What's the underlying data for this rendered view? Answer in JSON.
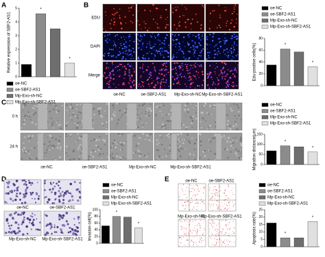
{
  "panel_letters": [
    "A",
    "B",
    "C",
    "D",
    "E"
  ],
  "b_rows": [
    "EDU",
    "DAPI",
    "Merge"
  ],
  "b_columns": [
    "oe-NC",
    "oe-SBF2-AS1",
    "Mp-Exo-sh-NC",
    "Mp-Exo-sh-SBF2-AS1"
  ],
  "c_rows": [
    "0 h",
    "24 h"
  ],
  "c_columns": [
    "oe-NC",
    "oe-SBF2-AS1",
    "Mp-Exo-sh-NC",
    "Mp-Exo-sh-SBF2-AS1"
  ],
  "d_labels": [
    "oe-NC",
    "oe-SBF2-AS1",
    "Mp-Exo-sh-NC",
    "Mp-Exo-sh-SBF2-AS1"
  ],
  "e_labels": [
    "oe-NC",
    "oe-SBF2-AS1",
    "Mp-Exo-sh-NC",
    "Mp-Exo-sh-SBF2-AS1"
  ],
  "chart_data": [
    {
      "type": "bar",
      "ylabel": "Relative expression of SBF2-AS1",
      "categories": [
        "oe-NC",
        "oe-SBF2-AS1",
        "Mp-Exo-sh-NC",
        "Mp-Exo-sh-SBF2-AS1"
      ],
      "values": [
        0.9,
        4.6,
        3.5,
        1.0
      ],
      "colors": [
        "#000000",
        "#8c8c8c",
        "#6e6e6e",
        "#e0e0e0"
      ],
      "ylim": [
        0,
        5
      ],
      "yticks": [
        0,
        1,
        2,
        3,
        4,
        5
      ],
      "annotations": [
        {
          "category": "oe-SBF2-AS1",
          "text": "*"
        },
        {
          "category": "Mp-Exo-sh-SBF2-AS1",
          "text": "*"
        }
      ]
    },
    {
      "type": "bar",
      "ylabel": "Edu-positive cells(%)",
      "categories": [
        "oe-NC",
        "oe-SBF2-AS1",
        "Mp-Exo-sh-NC",
        "Mp-Exo-sh-SBF2-AS1"
      ],
      "values": [
        35,
        62,
        57,
        32
      ],
      "colors": [
        "#000000",
        "#8c8c8c",
        "#6e6e6e",
        "#e0e0e0"
      ],
      "ylim": [
        0,
        80
      ],
      "yticks": [
        0,
        20,
        40,
        60,
        80
      ],
      "annotations": [
        {
          "category": "oe-SBF2-AS1",
          "text": "*"
        },
        {
          "category": "Mp-Exo-sh-SBF2-AS1",
          "text": "*"
        }
      ]
    },
    {
      "type": "bar",
      "ylabel": "Migration distance(μm)",
      "categories": [
        "oe-NC",
        "oe-SBF2-AS1",
        "Mp-Exo-sh-NC",
        "Mp-Exo-sh-SBF2-AS1"
      ],
      "values": [
        68,
        93,
        88,
        62
      ],
      "colors": [
        "#000000",
        "#8c8c8c",
        "#6e6e6e",
        "#e0e0e0"
      ],
      "ylim": [
        0,
        150
      ],
      "yticks": [
        0,
        50,
        100,
        150
      ],
      "annotations": [
        {
          "category": "oe-SBF2-AS1",
          "text": "*"
        },
        {
          "category": "Mp-Exo-sh-SBF2-AS1",
          "text": "*"
        }
      ]
    },
    {
      "type": "bar",
      "ylabel": "Invasion cell(%)",
      "categories": [
        "oe-NC",
        "oe-SBF2-AS1",
        "Mp-Exo-sh-NC",
        "Mp-Exo-sh-SBF2-AS1"
      ],
      "values": [
        52,
        80,
        78,
        46
      ],
      "colors": [
        "#000000",
        "#8c8c8c",
        "#6e6e6e",
        "#e0e0e0"
      ],
      "ylim": [
        0,
        100
      ],
      "yticks": [
        0,
        20,
        40,
        60,
        80,
        100
      ],
      "annotations": [
        {
          "category": "oe-SBF2-AS1",
          "text": "*"
        },
        {
          "category": "Mp-Exo-sh-SBF2-AS1",
          "text": "*"
        }
      ]
    },
    {
      "type": "bar",
      "ylabel": "Apoptosis rate(%)",
      "categories": [
        "oe-NC",
        "oe-SBF2-AS1",
        "Mp-Exo-sh-NC",
        "Mp-Exo-sh-SBF2-AS1"
      ],
      "values": [
        16,
        6,
        6,
        17
      ],
      "colors": [
        "#000000",
        "#8c8c8c",
        "#6e6e6e",
        "#e0e0e0"
      ],
      "ylim": [
        0,
        25
      ],
      "yticks": [
        0,
        5,
        10,
        15,
        20,
        25
      ],
      "annotations": [
        {
          "category": "oe-SBF2-AS1",
          "text": "*"
        },
        {
          "category": "Mp-Exo-sh-SBF2-AS1",
          "text": "*"
        }
      ]
    }
  ]
}
